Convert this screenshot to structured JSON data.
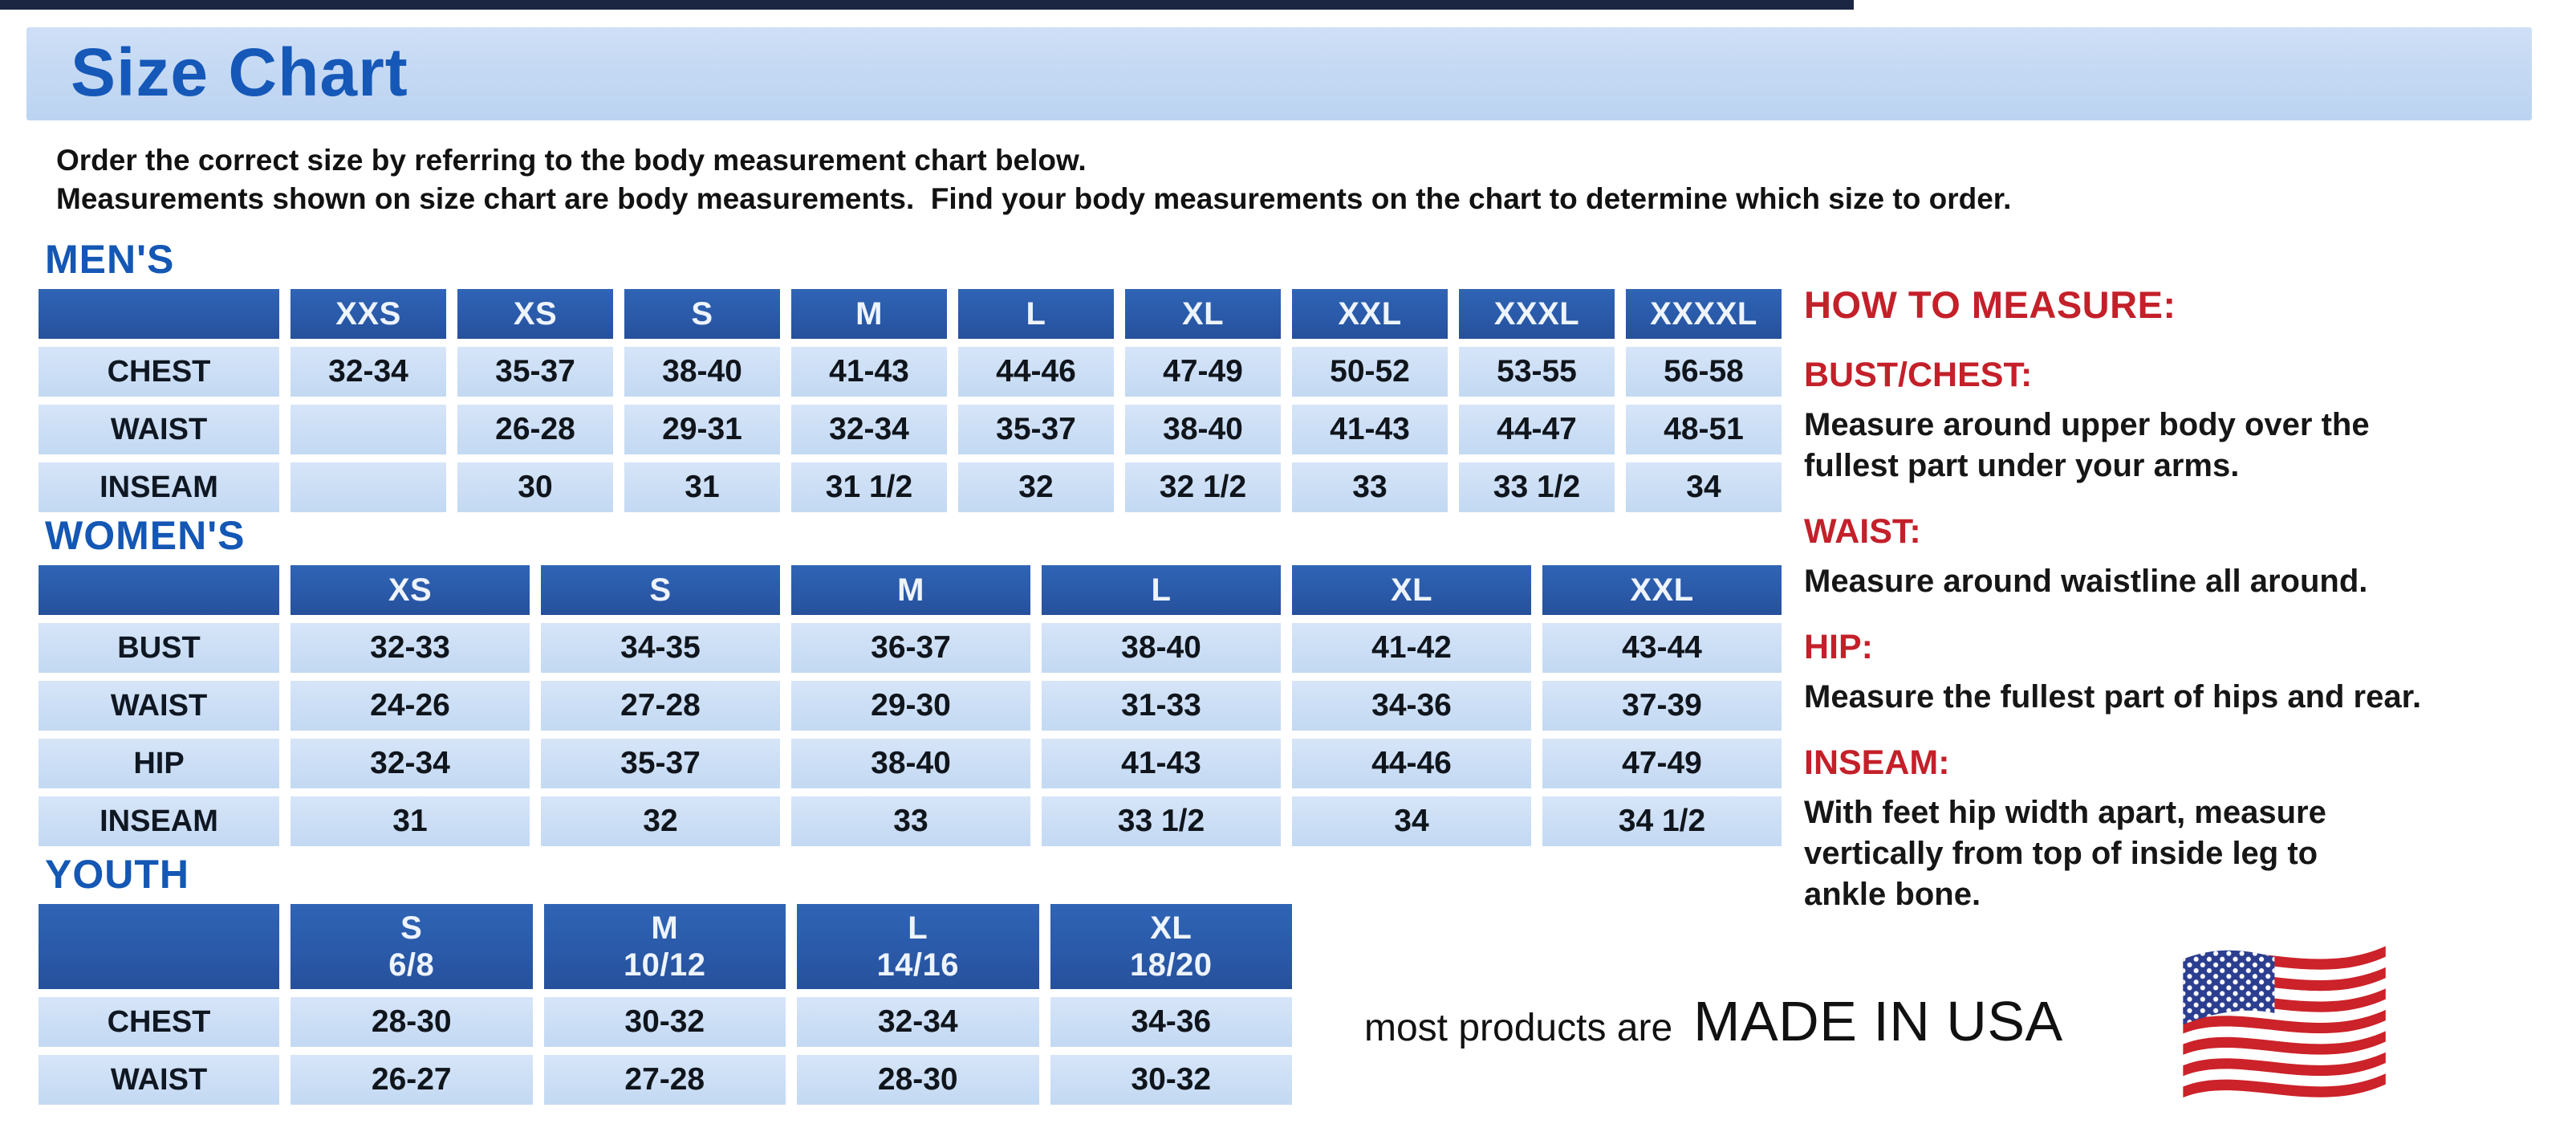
{
  "page": {
    "title": "Size Chart",
    "intro_line1": "Order the correct size by referring to the body measurement chart below.",
    "intro_line2": "Measurements shown on size chart are body measurements.  Find your body measurements on the chart to determine which size to order."
  },
  "tables": {
    "mens": {
      "heading": "MEN'S",
      "columns": [
        "",
        "XXS",
        "XS",
        "S",
        "M",
        "L",
        "XL",
        "XXL",
        "XXXL",
        "XXXXL"
      ],
      "rows": [
        {
          "label": "CHEST",
          "values": [
            "32-34",
            "35-37",
            "38-40",
            "41-43",
            "44-46",
            "47-49",
            "50-52",
            "53-55",
            "56-58"
          ]
        },
        {
          "label": "WAIST",
          "values": [
            "",
            "26-28",
            "29-31",
            "32-34",
            "35-37",
            "38-40",
            "41-43",
            "44-47",
            "48-51"
          ]
        },
        {
          "label": "INSEAM",
          "values": [
            "",
            "30",
            "31",
            "31 1/2",
            "32",
            "32 1/2",
            "33",
            "33 1/2",
            "34"
          ]
        }
      ]
    },
    "womens": {
      "heading": "WOMEN'S",
      "columns": [
        "",
        "XS",
        "S",
        "M",
        "L",
        "XL",
        "XXL"
      ],
      "rows": [
        {
          "label": "BUST",
          "values": [
            "32-33",
            "34-35",
            "36-37",
            "38-40",
            "41-42",
            "43-44"
          ]
        },
        {
          "label": "WAIST",
          "values": [
            "24-26",
            "27-28",
            "29-30",
            "31-33",
            "34-36",
            "37-39"
          ]
        },
        {
          "label": "HIP",
          "values": [
            "32-34",
            "35-37",
            "38-40",
            "41-43",
            "44-46",
            "47-49"
          ]
        },
        {
          "label": "INSEAM",
          "values": [
            "31",
            "32",
            "33",
            "33 1/2",
            "34",
            "34 1/2"
          ]
        }
      ]
    },
    "youth": {
      "heading": "YOUTH",
      "columns": [
        "",
        {
          "size": "S",
          "range": "6/8"
        },
        {
          "size": "M",
          "range": "10/12"
        },
        {
          "size": "L",
          "range": "14/16"
        },
        {
          "size": "XL",
          "range": "18/20"
        }
      ],
      "rows": [
        {
          "label": "CHEST",
          "values": [
            "28-30",
            "30-32",
            "32-34",
            "34-36"
          ]
        },
        {
          "label": "WAIST",
          "values": [
            "26-27",
            "27-28",
            "28-30",
            "30-32"
          ]
        }
      ]
    }
  },
  "how_to_measure": {
    "heading": "HOW TO MEASURE:",
    "items": [
      {
        "term": "BUST/CHEST:",
        "description": "Measure around upper body over the\nfullest part under your arms."
      },
      {
        "term": "WAIST:",
        "description": "Measure around waistline all around."
      },
      {
        "term": "HIP:",
        "description": "Measure the fullest part of hips and rear."
      },
      {
        "term": "INSEAM:",
        "description": "With feet hip width apart, measure\nvertically from top of inside leg to\nankle bone."
      }
    ]
  },
  "footer": {
    "made_in_prefix": "most products are",
    "made_in": "MADE IN USA",
    "flag_icon": "us-flag-icon"
  },
  "colors": {
    "title_blue": "#1558b8",
    "header_blue": "#2a5aa9",
    "cell_blue": "#cbdef5",
    "banner_blue": "#c6dbf4",
    "accent_red": "#c4202a",
    "flag_red": "#cc2229",
    "flag_navy": "#2c3e8f"
  }
}
